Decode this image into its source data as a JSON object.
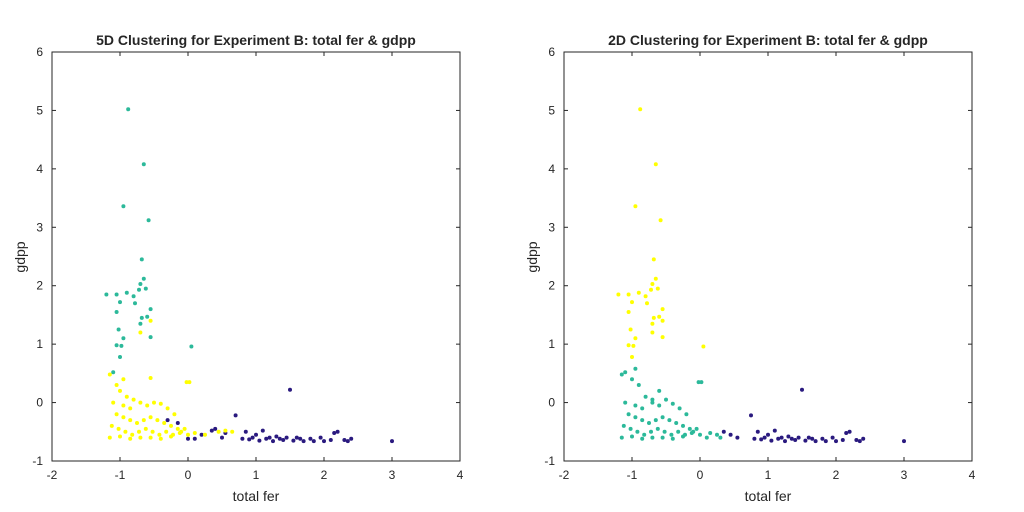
{
  "chart_data": [
    {
      "type": "scatter",
      "title": "5D Clustering for Experiment B: total fer & gdpp",
      "xlabel": "total fer",
      "ylabel": "gdpp",
      "xlim": [
        -2,
        4
      ],
      "ylim": [
        -1,
        6
      ],
      "xticks": [
        "-2",
        "-1",
        "0",
        "1",
        "2",
        "3",
        "4"
      ],
      "yticks": [
        "-1",
        "0",
        "1",
        "2",
        "3",
        "4",
        "5",
        "6"
      ],
      "grid": false,
      "colors": {
        "cluster_dark": "#2a1a7f",
        "cluster_teal": "#2cb99a",
        "cluster_yellow": "#ffff00"
      },
      "series": [
        {
          "color": "#2a1a7f",
          "points": [
            [
              0.1,
              -0.62
            ],
            [
              0.2,
              -0.55
            ],
            [
              0.35,
              -0.48
            ],
            [
              0.4,
              -0.45
            ],
            [
              0.5,
              -0.6
            ],
            [
              0.55,
              -0.52
            ],
            [
              0.7,
              -0.22
            ],
            [
              0.8,
              -0.62
            ],
            [
              0.85,
              -0.5
            ],
            [
              0.9,
              -0.63
            ],
            [
              0.95,
              -0.6
            ],
            [
              1.0,
              -0.55
            ],
            [
              1.05,
              -0.65
            ],
            [
              1.1,
              -0.48
            ],
            [
              1.15,
              -0.62
            ],
            [
              1.2,
              -0.6
            ],
            [
              1.25,
              -0.66
            ],
            [
              1.3,
              -0.58
            ],
            [
              1.35,
              -0.62
            ],
            [
              1.4,
              -0.64
            ],
            [
              1.45,
              -0.6
            ],
            [
              1.5,
              0.22
            ],
            [
              1.55,
              -0.65
            ],
            [
              1.6,
              -0.6
            ],
            [
              1.65,
              -0.62
            ],
            [
              1.7,
              -0.66
            ],
            [
              1.8,
              -0.62
            ],
            [
              1.85,
              -0.66
            ],
            [
              1.95,
              -0.6
            ],
            [
              2.0,
              -0.66
            ],
            [
              2.1,
              -0.64
            ],
            [
              2.15,
              -0.52
            ],
            [
              2.2,
              -0.5
            ],
            [
              2.3,
              -0.64
            ],
            [
              2.35,
              -0.66
            ],
            [
              2.4,
              -0.62
            ],
            [
              3.0,
              -0.66
            ],
            [
              -0.3,
              -0.3
            ],
            [
              -0.15,
              -0.35
            ],
            [
              0.0,
              -0.62
            ]
          ]
        },
        {
          "color": "#2cb99a",
          "points": [
            [
              -0.88,
              5.02
            ],
            [
              -0.65,
              4.08
            ],
            [
              -0.95,
              3.36
            ],
            [
              -0.58,
              3.12
            ],
            [
              -0.68,
              2.45
            ],
            [
              -0.65,
              2.12
            ],
            [
              -0.7,
              2.03
            ],
            [
              -0.62,
              1.95
            ],
            [
              -0.72,
              1.93
            ],
            [
              -0.9,
              1.88
            ],
            [
              -1.2,
              1.85
            ],
            [
              -1.05,
              1.85
            ],
            [
              -0.8,
              1.82
            ],
            [
              -1.0,
              1.72
            ],
            [
              -0.78,
              1.7
            ],
            [
              -0.55,
              1.6
            ],
            [
              -1.05,
              1.55
            ],
            [
              -0.6,
              1.47
            ],
            [
              -0.68,
              1.45
            ],
            [
              -0.7,
              1.35
            ],
            [
              -1.02,
              1.25
            ],
            [
              -0.55,
              1.12
            ],
            [
              -0.95,
              1.1
            ],
            [
              -1.05,
              0.98
            ],
            [
              -0.98,
              0.97
            ],
            [
              0.05,
              0.96
            ],
            [
              -1.0,
              0.78
            ],
            [
              -1.1,
              0.52
            ]
          ]
        },
        {
          "color": "#ffff00",
          "points": [
            [
              -0.55,
              1.4
            ],
            [
              -0.7,
              1.2
            ],
            [
              -0.55,
              0.42
            ],
            [
              -0.02,
              0.35
            ],
            [
              0.02,
              0.35
            ],
            [
              -1.15,
              0.48
            ],
            [
              -0.95,
              0.4
            ],
            [
              -1.05,
              0.3
            ],
            [
              -1.0,
              0.2
            ],
            [
              -0.9,
              0.1
            ],
            [
              -0.8,
              0.05
            ],
            [
              -1.1,
              0.0
            ],
            [
              -0.95,
              -0.05
            ],
            [
              -0.85,
              -0.1
            ],
            [
              -0.7,
              0.0
            ],
            [
              -0.6,
              -0.05
            ],
            [
              -0.5,
              0.0
            ],
            [
              -0.4,
              -0.02
            ],
            [
              -0.3,
              -0.1
            ],
            [
              -0.2,
              -0.2
            ],
            [
              -1.05,
              -0.2
            ],
            [
              -0.95,
              -0.25
            ],
            [
              -0.85,
              -0.3
            ],
            [
              -0.75,
              -0.35
            ],
            [
              -0.65,
              -0.3
            ],
            [
              -0.55,
              -0.25
            ],
            [
              -0.45,
              -0.3
            ],
            [
              -0.35,
              -0.35
            ],
            [
              -0.25,
              -0.4
            ],
            [
              -0.15,
              -0.45
            ],
            [
              -1.12,
              -0.4
            ],
            [
              -1.02,
              -0.45
            ],
            [
              -0.92,
              -0.5
            ],
            [
              -0.82,
              -0.55
            ],
            [
              -0.72,
              -0.5
            ],
            [
              -0.62,
              -0.45
            ],
            [
              -0.52,
              -0.5
            ],
            [
              -0.42,
              -0.55
            ],
            [
              -0.32,
              -0.5
            ],
            [
              -0.22,
              -0.55
            ],
            [
              -1.15,
              -0.6
            ],
            [
              -1.0,
              -0.58
            ],
            [
              -0.85,
              -0.62
            ],
            [
              -0.7,
              -0.6
            ],
            [
              -0.55,
              -0.6
            ],
            [
              -0.4,
              -0.62
            ],
            [
              -0.25,
              -0.58
            ],
            [
              -0.1,
              -0.5
            ],
            [
              0.0,
              -0.55
            ],
            [
              0.1,
              -0.52
            ],
            [
              0.25,
              -0.55
            ],
            [
              0.45,
              -0.5
            ],
            [
              0.55,
              -0.48
            ],
            [
              0.65,
              -0.5
            ],
            [
              -0.05,
              -0.45
            ],
            [
              -0.12,
              -0.52
            ]
          ]
        }
      ]
    },
    {
      "type": "scatter",
      "title": "2D Clustering for Experiment B: total fer & gdpp",
      "xlabel": "total fer",
      "ylabel": "gdpp",
      "xlim": [
        -2,
        4
      ],
      "ylim": [
        -1,
        6
      ],
      "xticks": [
        "-2",
        "-1",
        "0",
        "1",
        "2",
        "3",
        "4"
      ],
      "yticks": [
        "-1",
        "0",
        "1",
        "2",
        "3",
        "4",
        "5",
        "6"
      ],
      "grid": false,
      "colors": {
        "cluster_dark": "#2a1a7f",
        "cluster_teal": "#2cb99a",
        "cluster_yellow": "#ffff00"
      },
      "series": [
        {
          "color": "#2a1a7f",
          "points": [
            [
              0.35,
              -0.5
            ],
            [
              0.45,
              -0.55
            ],
            [
              0.55,
              -0.6
            ],
            [
              0.75,
              -0.22
            ],
            [
              0.8,
              -0.62
            ],
            [
              0.85,
              -0.5
            ],
            [
              0.9,
              -0.63
            ],
            [
              0.95,
              -0.6
            ],
            [
              1.0,
              -0.55
            ],
            [
              1.05,
              -0.65
            ],
            [
              1.1,
              -0.48
            ],
            [
              1.15,
              -0.62
            ],
            [
              1.2,
              -0.6
            ],
            [
              1.25,
              -0.66
            ],
            [
              1.3,
              -0.58
            ],
            [
              1.35,
              -0.62
            ],
            [
              1.4,
              -0.64
            ],
            [
              1.45,
              -0.6
            ],
            [
              1.5,
              0.22
            ],
            [
              1.55,
              -0.65
            ],
            [
              1.6,
              -0.6
            ],
            [
              1.65,
              -0.62
            ],
            [
              1.7,
              -0.66
            ],
            [
              1.8,
              -0.62
            ],
            [
              1.85,
              -0.66
            ],
            [
              1.95,
              -0.6
            ],
            [
              2.0,
              -0.66
            ],
            [
              2.1,
              -0.64
            ],
            [
              2.15,
              -0.52
            ],
            [
              2.2,
              -0.5
            ],
            [
              2.3,
              -0.64
            ],
            [
              2.35,
              -0.66
            ],
            [
              2.4,
              -0.62
            ],
            [
              3.0,
              -0.66
            ]
          ]
        },
        {
          "color": "#2cb99a",
          "points": [
            [
              -0.02,
              0.35
            ],
            [
              0.02,
              0.35
            ],
            [
              -1.15,
              0.48
            ],
            [
              -1.1,
              0.52
            ],
            [
              -1.0,
              0.4
            ],
            [
              -0.95,
              0.58
            ],
            [
              -0.9,
              0.3
            ],
            [
              -0.8,
              0.1
            ],
            [
              -0.7,
              0.05
            ],
            [
              -0.6,
              0.2
            ],
            [
              -0.5,
              0.05
            ],
            [
              -1.1,
              0.0
            ],
            [
              -0.95,
              -0.05
            ],
            [
              -0.85,
              -0.1
            ],
            [
              -0.7,
              0.0
            ],
            [
              -0.6,
              -0.05
            ],
            [
              -0.4,
              -0.02
            ],
            [
              -0.3,
              -0.1
            ],
            [
              -0.2,
              -0.2
            ],
            [
              -1.05,
              -0.2
            ],
            [
              -0.95,
              -0.25
            ],
            [
              -0.85,
              -0.3
            ],
            [
              -0.75,
              -0.35
            ],
            [
              -0.65,
              -0.3
            ],
            [
              -0.55,
              -0.25
            ],
            [
              -0.45,
              -0.3
            ],
            [
              -0.35,
              -0.35
            ],
            [
              -0.25,
              -0.4
            ],
            [
              -0.15,
              -0.45
            ],
            [
              -1.12,
              -0.4
            ],
            [
              -1.02,
              -0.45
            ],
            [
              -0.92,
              -0.5
            ],
            [
              -0.82,
              -0.55
            ],
            [
              -0.72,
              -0.5
            ],
            [
              -0.62,
              -0.45
            ],
            [
              -0.52,
              -0.5
            ],
            [
              -0.42,
              -0.55
            ],
            [
              -0.32,
              -0.5
            ],
            [
              -0.22,
              -0.55
            ],
            [
              -1.15,
              -0.6
            ],
            [
              -1.0,
              -0.58
            ],
            [
              -0.85,
              -0.62
            ],
            [
              -0.7,
              -0.6
            ],
            [
              -0.55,
              -0.6
            ],
            [
              -0.4,
              -0.62
            ],
            [
              -0.25,
              -0.58
            ],
            [
              -0.1,
              -0.5
            ],
            [
              0.0,
              -0.55
            ],
            [
              0.1,
              -0.6
            ],
            [
              0.15,
              -0.52
            ],
            [
              0.25,
              -0.55
            ],
            [
              0.3,
              -0.6
            ],
            [
              -0.05,
              -0.45
            ],
            [
              -0.12,
              -0.52
            ]
          ]
        },
        {
          "color": "#ffff00",
          "points": [
            [
              -0.88,
              5.02
            ],
            [
              -0.65,
              4.08
            ],
            [
              -0.95,
              3.36
            ],
            [
              -0.58,
              3.12
            ],
            [
              -0.68,
              2.45
            ],
            [
              -0.65,
              2.12
            ],
            [
              -0.7,
              2.03
            ],
            [
              -0.62,
              1.95
            ],
            [
              -0.72,
              1.93
            ],
            [
              -0.9,
              1.88
            ],
            [
              -1.2,
              1.85
            ],
            [
              -1.05,
              1.85
            ],
            [
              -0.8,
              1.82
            ],
            [
              -1.0,
              1.72
            ],
            [
              -0.78,
              1.7
            ],
            [
              -0.55,
              1.6
            ],
            [
              -1.05,
              1.55
            ],
            [
              -0.6,
              1.47
            ],
            [
              -0.68,
              1.45
            ],
            [
              -0.55,
              1.4
            ],
            [
              -0.7,
              1.35
            ],
            [
              -1.02,
              1.25
            ],
            [
              -0.7,
              1.2
            ],
            [
              -0.55,
              1.12
            ],
            [
              -0.95,
              1.1
            ],
            [
              -1.05,
              0.98
            ],
            [
              -0.98,
              0.97
            ],
            [
              0.05,
              0.96
            ],
            [
              -1.0,
              0.78
            ]
          ]
        }
      ]
    }
  ]
}
